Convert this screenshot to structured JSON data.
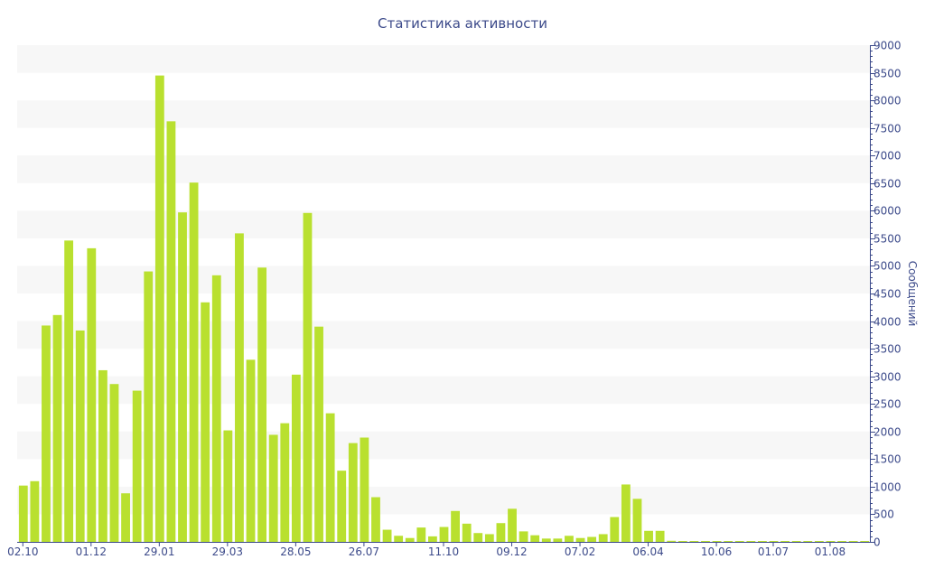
{
  "chart_data": {
    "type": "bar",
    "title": "Статистика активности",
    "xlabel": "",
    "ylabel": "Сообщений",
    "y_axis_position": "right",
    "ylim": [
      0,
      9000
    ],
    "yticks": [
      0,
      500,
      1000,
      1500,
      2000,
      2500,
      3000,
      3500,
      4000,
      4500,
      5000,
      5500,
      6000,
      6500,
      7000,
      7500,
      8000,
      8500,
      9000
    ],
    "x_tick_labels": [
      {
        "label": "02.10",
        "index": 0
      },
      {
        "label": "01.12",
        "index": 6
      },
      {
        "label": "29.01",
        "index": 12
      },
      {
        "label": "29.03",
        "index": 18
      },
      {
        "label": "28.05",
        "index": 24
      },
      {
        "label": "26.07",
        "index": 30
      },
      {
        "label": "11.10",
        "index": 37
      },
      {
        "label": "09.12",
        "index": 43
      },
      {
        "label": "07.02",
        "index": 49
      },
      {
        "label": "06.04",
        "index": 55
      },
      {
        "label": "10.06",
        "index": 61
      },
      {
        "label": "01.07",
        "index": 66
      },
      {
        "label": "01.08",
        "index": 71
      }
    ],
    "bar_color": "#b9e02f",
    "band_color": "#f7f7f7",
    "values": [
      1020,
      1100,
      3920,
      4110,
      5460,
      3830,
      5320,
      3110,
      2860,
      880,
      2740,
      4900,
      8450,
      7620,
      5970,
      6510,
      4340,
      4830,
      2020,
      5590,
      3300,
      4970,
      1940,
      2150,
      3030,
      5960,
      3900,
      2330,
      1290,
      1790,
      1890,
      810,
      220,
      110,
      70,
      260,
      100,
      270,
      560,
      330,
      160,
      140,
      340,
      600,
      190,
      120,
      60,
      60,
      110,
      70,
      90,
      140,
      450,
      1040,
      780,
      200,
      200,
      20,
      15,
      15,
      15,
      15,
      15,
      15,
      15,
      15,
      15,
      15,
      15,
      15,
      15,
      15,
      15,
      15,
      15
    ]
  }
}
